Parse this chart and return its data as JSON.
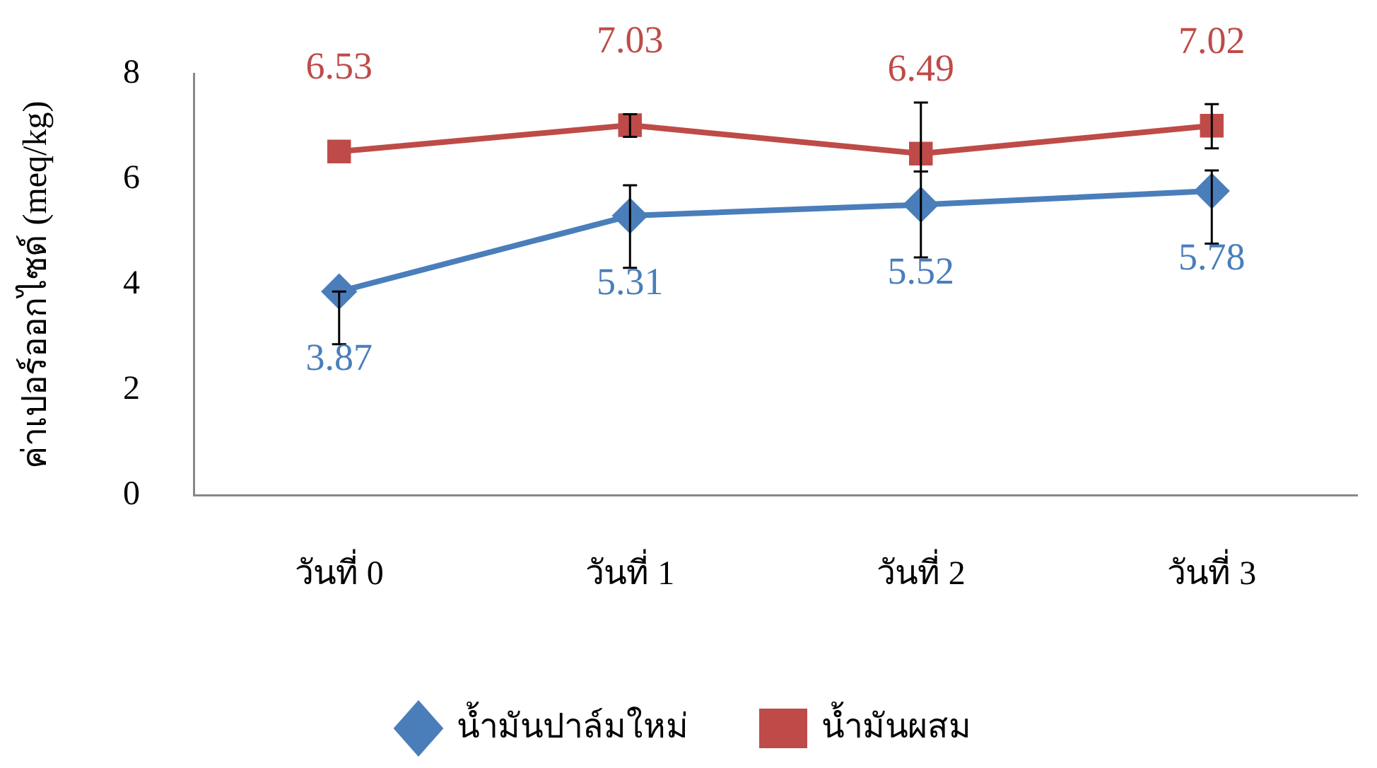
{
  "chart_data": {
    "type": "line",
    "ylabel": "ค่าเปอร์ออกไซด์ (meq/kg)",
    "categories": [
      "วันที่ 0",
      "วันที่ 1",
      "วันที่ 2",
      "วันที่ 3"
    ],
    "series": [
      {
        "name": "น้ำมันปาล์มใหม่",
        "color": "#4a7ebb",
        "marker": "diamond",
        "values": [
          3.87,
          5.31,
          5.52,
          5.78
        ],
        "errors": [
          [
            2.87,
            3.87
          ],
          [
            4.32,
            5.89
          ],
          [
            4.52,
            6.15
          ],
          [
            4.78,
            6.17
          ]
        ]
      },
      {
        "name": "น้ำมันผสม",
        "color": "#be4b48",
        "marker": "square",
        "values": [
          6.53,
          7.03,
          6.49,
          7.02
        ],
        "errors": [
          null,
          [
            6.81,
            7.24
          ],
          [
            6.15,
            7.46
          ],
          [
            6.59,
            7.43
          ]
        ]
      }
    ],
    "ylim": [
      0,
      8
    ],
    "yticks": [
      0,
      2,
      4,
      6,
      8
    ],
    "grid": false,
    "legend": "bottom",
    "data_labels": true,
    "line_style": "solid"
  }
}
